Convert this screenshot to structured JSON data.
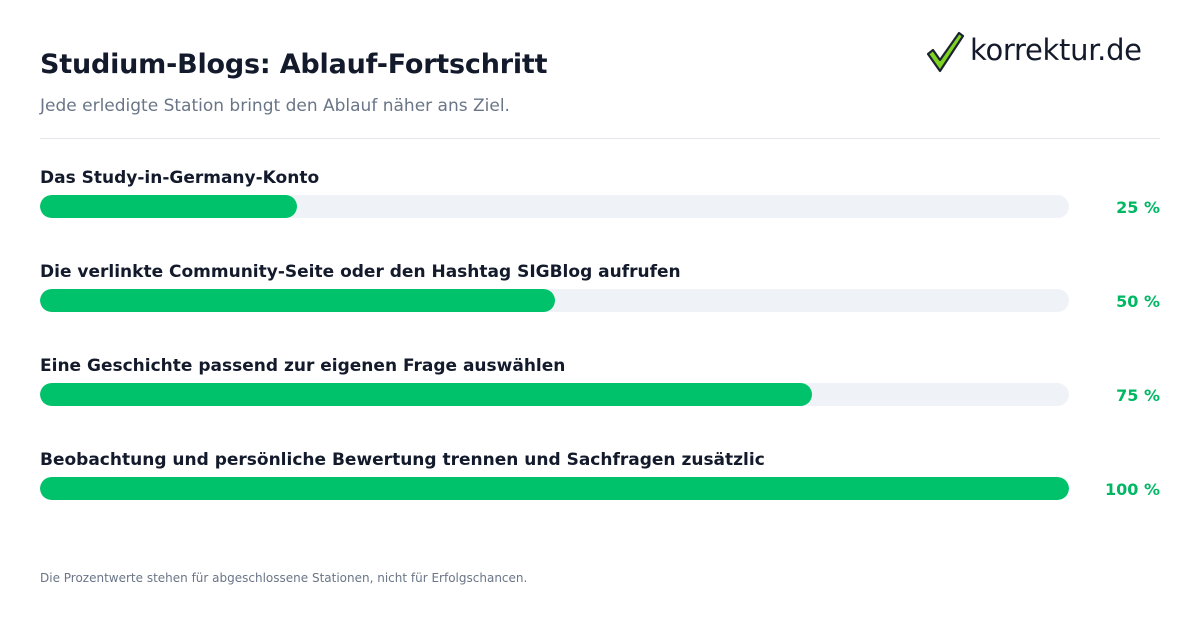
{
  "header": {
    "title": "Studium-Blogs: Ablauf-Fortschritt",
    "subtitle": "Jede erledigte Station bringt den Ablauf näher ans Ziel."
  },
  "logo": {
    "text": "korrektur.de",
    "icon": "checkmark-icon",
    "check_color": "#7ed321"
  },
  "chart_data": {
    "type": "bar",
    "orientation": "horizontal",
    "unit": "%",
    "xlim": [
      0,
      100
    ],
    "bar_color": "#00c26a",
    "track_color": "#eff3f8",
    "label_color": "#00b863",
    "categories": [
      "Das Study-in-Germany-Konto",
      "Die verlinkte Community-Seite oder den Hashtag SIGBlog aufrufen",
      "Eine Geschichte passend zur eigenen Frage auswählen",
      "Beobachtung und persönliche Bewertung trennen und Sachfragen zusätzlic"
    ],
    "values": [
      25,
      50,
      75,
      100
    ],
    "value_labels": [
      "25 %",
      "50 %",
      "75 %",
      "100 %"
    ]
  },
  "footer": {
    "note": "Die Prozentwerte stehen für abgeschlossene Stationen, nicht für Erfolgschancen."
  }
}
